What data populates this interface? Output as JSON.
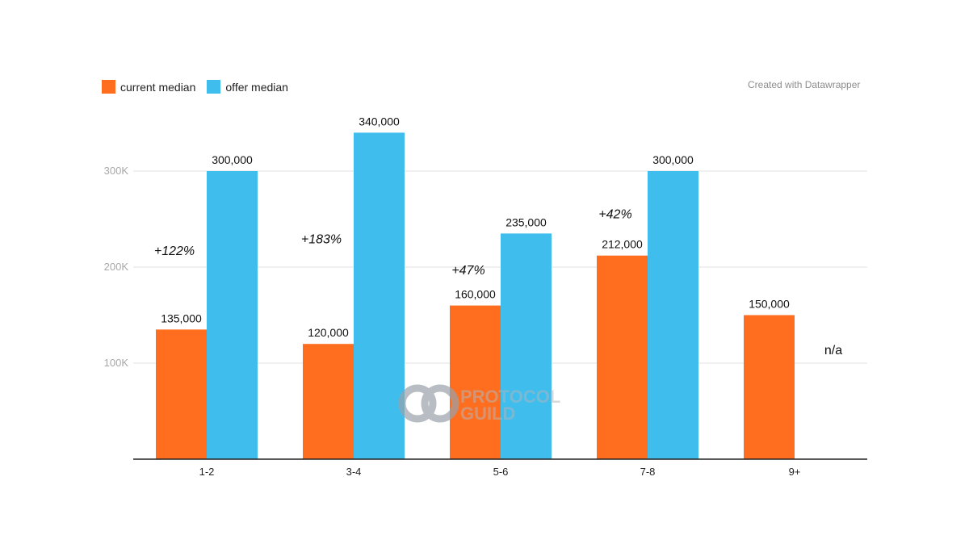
{
  "credit": "Created with Datawrapper",
  "watermark": {
    "line1": "PROTOCOL",
    "line2": "GUILD"
  },
  "chart_data": {
    "type": "bar",
    "categories": [
      "1-2",
      "3-4",
      "5-6",
      "7-8",
      "9+"
    ],
    "series": [
      {
        "name": "current median",
        "color": "#ff6e1f",
        "values": [
          135000,
          120000,
          160000,
          212000,
          150000
        ],
        "labels": [
          "135,000",
          "120,000",
          "160,000",
          "212,000",
          "150,000"
        ]
      },
      {
        "name": "offer median",
        "color": "#3fbded",
        "values": [
          300000,
          340000,
          235000,
          300000,
          null
        ],
        "labels": [
          "300,000",
          "340,000",
          "235,000",
          "300,000",
          ""
        ]
      }
    ],
    "annotations": [
      "+122%",
      "+183%",
      "+47%",
      "+42%",
      ""
    ],
    "missing_label": "n/a",
    "yticks": [
      {
        "value": 100000,
        "label": "100K"
      },
      {
        "value": 200000,
        "label": "200K"
      },
      {
        "value": 300000,
        "label": "300K"
      }
    ],
    "ylim": [
      0,
      350000
    ],
    "grid": true,
    "legend_position": "top-left"
  }
}
